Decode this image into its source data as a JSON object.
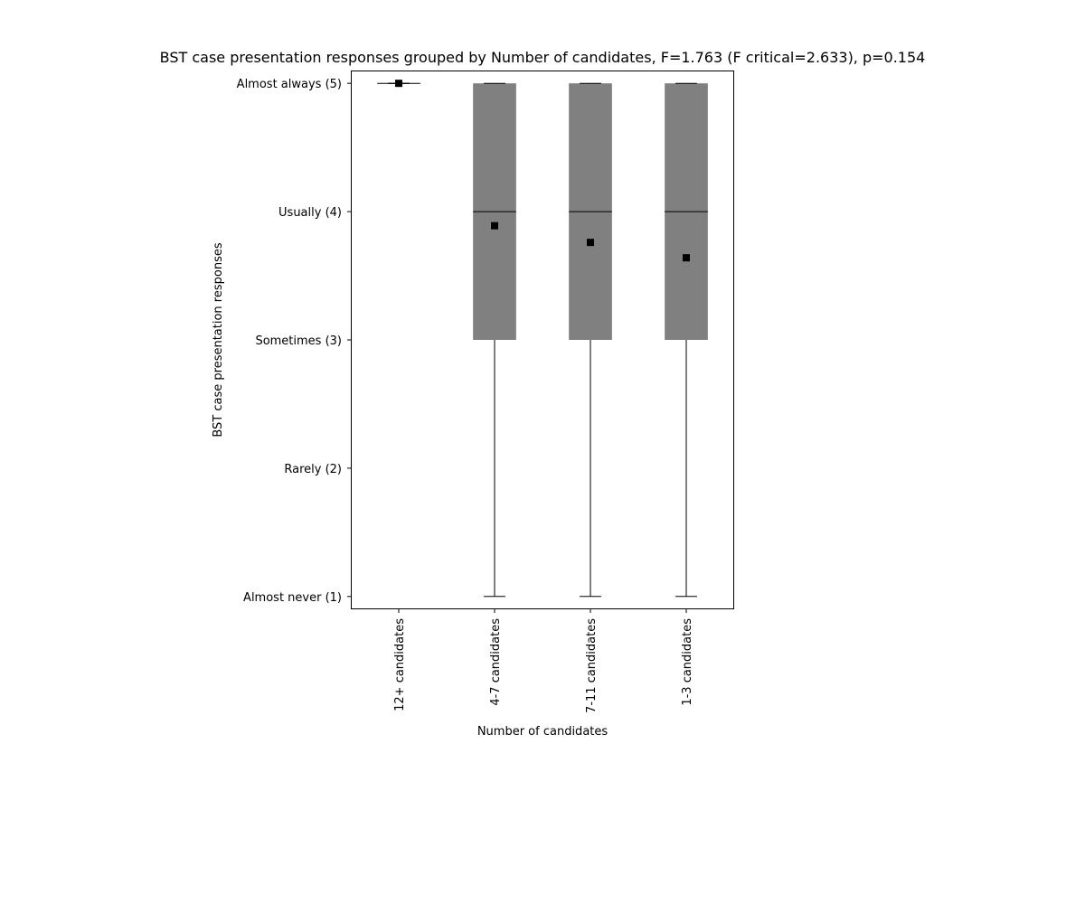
{
  "chart_data": {
    "type": "box",
    "title": "BST case presentation responses grouped by Number of candidates, F=1.763 (F critical=2.633), p=0.154",
    "xlabel": "Number of candidates",
    "ylabel": "BST case presentation responses",
    "categories": [
      "12+ candidates",
      "4-7 candidates",
      "7-11 candidates",
      "1-3 candidates"
    ],
    "y_ticks": [
      {
        "value": 5,
        "label": "Almost always (5)"
      },
      {
        "value": 4,
        "label": "Usually (4)"
      },
      {
        "value": 3,
        "label": "Sometimes (3)"
      },
      {
        "value": 2,
        "label": "Rarely (2)"
      },
      {
        "value": 1,
        "label": "Almost never (1)"
      }
    ],
    "ylim": [
      0.9,
      5.1
    ],
    "grid": false,
    "boxes": [
      {
        "category": "12+ candidates",
        "whisker_low": 5,
        "q1": 5,
        "median": 5,
        "q3": 5,
        "whisker_high": 5,
        "mean": 5.0
      },
      {
        "category": "4-7 candidates",
        "whisker_low": 1,
        "q1": 3,
        "median": 4,
        "q3": 5,
        "whisker_high": 5,
        "mean": 3.89
      },
      {
        "category": "7-11 candidates",
        "whisker_low": 1,
        "q1": 3,
        "median": 4,
        "q3": 5,
        "whisker_high": 5,
        "mean": 3.76
      },
      {
        "category": "1-3 candidates",
        "whisker_low": 1,
        "q1": 3,
        "median": 4,
        "q3": 5,
        "whisker_high": 5,
        "mean": 3.64
      }
    ],
    "colors": {
      "box_fill": "#808080",
      "line": "#000000",
      "mean_marker": "#000000"
    }
  }
}
